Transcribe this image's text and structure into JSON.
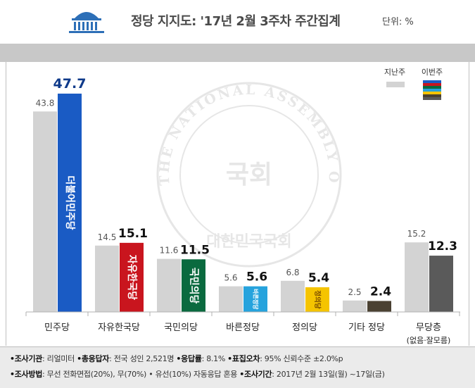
{
  "header": {
    "title": "정당 지지도: '17년 2월 3주차 주간집계",
    "unit": "단위: %"
  },
  "legend": {
    "previous_label": "지난주",
    "current_label": "이번주"
  },
  "watermark": {
    "ring_text": "THE NATIONAL ASSEMBLY OF THE REPUBLIC OF KOREA",
    "center_text": "국회",
    "bottom_text": "대한민국국회"
  },
  "colors": {
    "previous": "#d3d3d3",
    "minju": "#1a5bc4",
    "jayu": "#c9151e",
    "kukmin": "#0a6a3f",
    "bareun": "#26a3dd",
    "jeongui": "#f5c400",
    "gita": "#4a4132",
    "mudang": "#5a5a5a"
  },
  "chart_data": {
    "type": "bar",
    "title": "정당 지지도: '17년 2월 3주차 주간집계",
    "unit": "%",
    "categories": [
      "민주당",
      "자유한국당",
      "국민의당",
      "바른정당",
      "정의당",
      "기타 정당",
      "무당층"
    ],
    "category_sublabels": [
      "",
      "",
      "",
      "",
      "",
      "",
      "(없음·잘모름)"
    ],
    "party_logos": [
      "더불어민주당",
      "자유한국당",
      "국민의당",
      "바른정당",
      "정의당",
      "",
      ""
    ],
    "series": [
      {
        "name": "지난주",
        "values": [
          43.8,
          14.5,
          11.6,
          5.6,
          6.8,
          2.5,
          15.2
        ]
      },
      {
        "name": "이번주",
        "values": [
          47.7,
          15.1,
          11.5,
          5.6,
          5.4,
          2.4,
          12.3
        ]
      }
    ],
    "ylim": [
      0,
      50
    ],
    "grid": false,
    "legend": "top-right"
  },
  "footer": {
    "line1": [
      {
        "label": "•조사기관",
        "value": ": 리얼미터  "
      },
      {
        "label": "•총응답자",
        "value": ": 전국 성인 2,521명  "
      },
      {
        "label": "•응답률",
        "value": ": 8.1%  "
      },
      {
        "label": "•표집오차",
        "value": ": 95% 신뢰수준 ±2.0%p"
      }
    ],
    "line2": [
      {
        "label": "•조사방법",
        "value": ": 무선 전화면접(20%), 무(70%) • 유선(10%) 자동응답 혼용  "
      },
      {
        "label": "•조사기간",
        "value": ": 2017년 2월 13일(월) ~17일(금)"
      }
    ]
  }
}
